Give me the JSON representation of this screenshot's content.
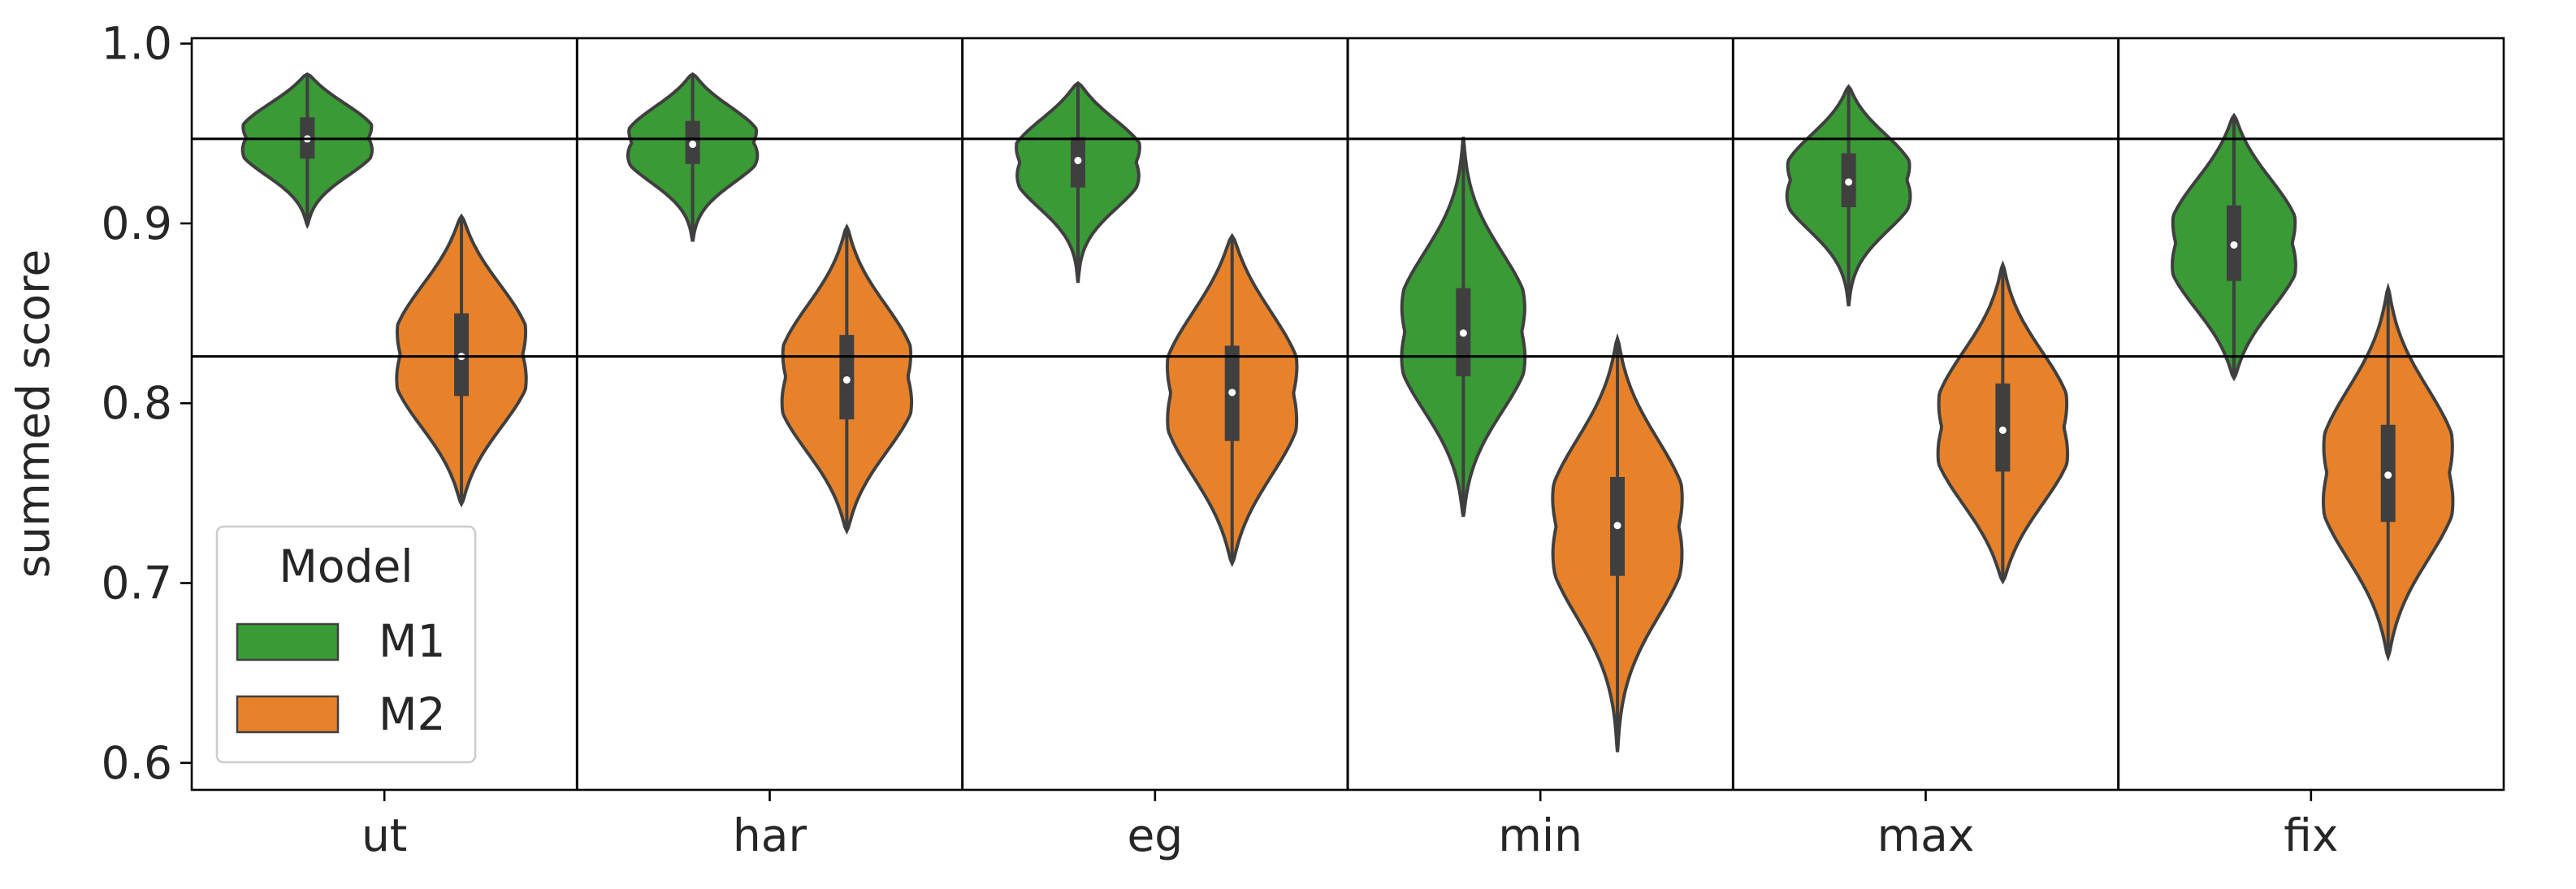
{
  "chart_data": {
    "type": "violin",
    "xlabel": "",
    "ylabel": "summed score",
    "ylim": [
      0.585,
      1.003
    ],
    "yticks": [
      0.6,
      0.7,
      0.8,
      0.9,
      1.0
    ],
    "ytick_labels": [
      "0.6",
      "0.7",
      "0.8",
      "0.9",
      "1.0"
    ],
    "categories": [
      "ut",
      "har",
      "eg",
      "min",
      "max",
      "fix"
    ],
    "reference_lines": [
      0.947,
      0.826
    ],
    "legend": {
      "title": "Model",
      "position": "lower-left",
      "entries": [
        {
          "label": "M1",
          "color": "#3a9a36"
        },
        {
          "label": "M2",
          "color": "#e8822a"
        }
      ]
    },
    "series": [
      {
        "name": "M1",
        "color": "#3a9a36",
        "groups": [
          {
            "category": "ut",
            "min": 0.899,
            "q1": 0.936,
            "median": 0.947,
            "q3": 0.959,
            "max": 0.983,
            "max_width": 0.84
          },
          {
            "category": "har",
            "min": 0.89,
            "q1": 0.933,
            "median": 0.944,
            "q3": 0.957,
            "max": 0.983,
            "max_width": 0.84
          },
          {
            "category": "eg",
            "min": 0.867,
            "q1": 0.92,
            "median": 0.935,
            "q3": 0.948,
            "max": 0.978,
            "max_width": 0.8
          },
          {
            "category": "min",
            "min": 0.737,
            "q1": 0.815,
            "median": 0.839,
            "q3": 0.864,
            "max": 0.948,
            "max_width": 0.8
          },
          {
            "category": "max",
            "min": 0.854,
            "q1": 0.909,
            "median": 0.923,
            "q3": 0.939,
            "max": 0.976,
            "max_width": 0.8
          },
          {
            "category": "fix",
            "min": 0.814,
            "q1": 0.868,
            "median": 0.888,
            "q3": 0.91,
            "max": 0.96,
            "max_width": 0.8
          }
        ]
      },
      {
        "name": "M2",
        "color": "#e8822a",
        "groups": [
          {
            "category": "ut",
            "min": 0.744,
            "q1": 0.804,
            "median": 0.826,
            "q3": 0.85,
            "max": 0.904,
            "max_width": 0.84
          },
          {
            "category": "har",
            "min": 0.729,
            "q1": 0.791,
            "median": 0.813,
            "q3": 0.838,
            "max": 0.898,
            "max_width": 0.84
          },
          {
            "category": "eg",
            "min": 0.711,
            "q1": 0.779,
            "median": 0.806,
            "q3": 0.832,
            "max": 0.893,
            "max_width": 0.84
          },
          {
            "category": "min",
            "min": 0.606,
            "q1": 0.704,
            "median": 0.732,
            "q3": 0.759,
            "max": 0.836,
            "max_width": 0.84
          },
          {
            "category": "max",
            "min": 0.701,
            "q1": 0.762,
            "median": 0.785,
            "q3": 0.811,
            "max": 0.877,
            "max_width": 0.84
          },
          {
            "category": "fix",
            "min": 0.659,
            "q1": 0.734,
            "median": 0.76,
            "q3": 0.788,
            "max": 0.864,
            "max_width": 0.84
          }
        ]
      }
    ]
  }
}
